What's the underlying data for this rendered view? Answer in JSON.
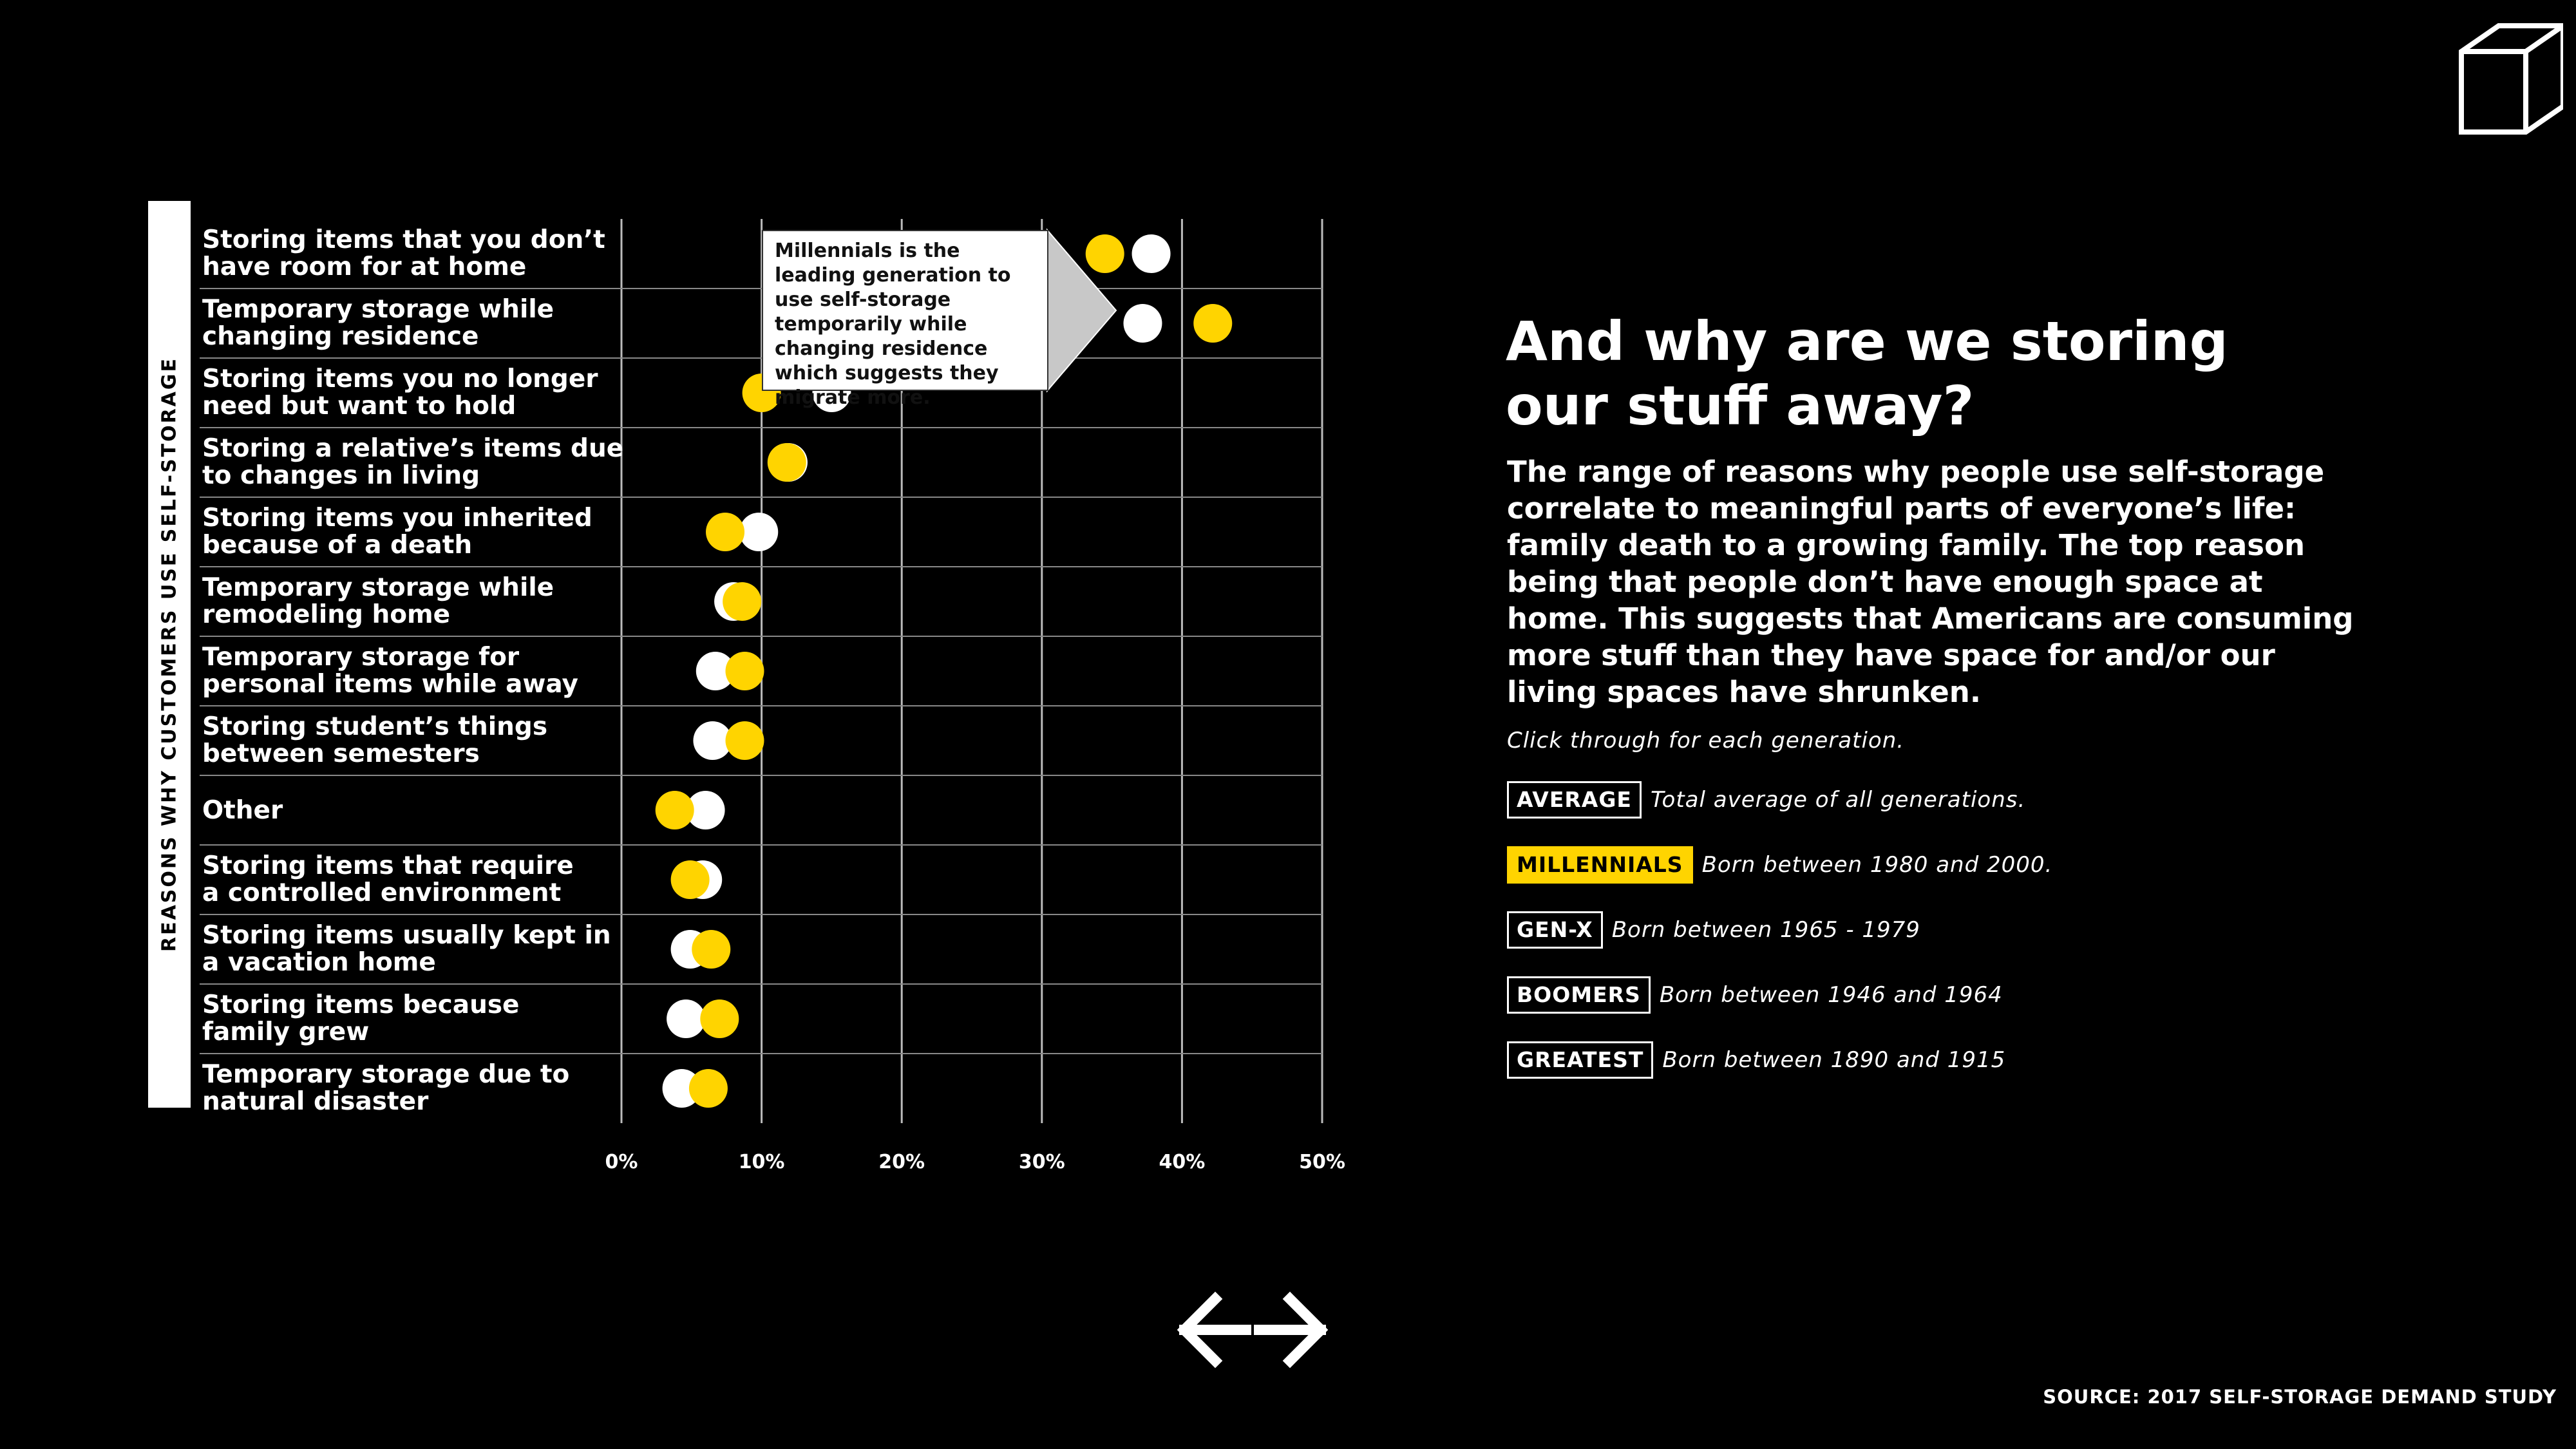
{
  "heading": "And why are we storing our stuff away?",
  "description": "The range of reasons why people use self-storage correlate to meaningful parts of everyone’s life: family death to a growing family. The top reason being that people don’t have enough space at home. This suggests that Americans are consuming more stuff than they have space for and/or our living spaces have shrunken.",
  "instruction": "Click through for each generation.",
  "legend": [
    {
      "label": "AVERAGE",
      "description": "Total average of all generations.",
      "active": false
    },
    {
      "label": "MILLENNIALS",
      "description": "Born between 1980 and 2000.",
      "active": true
    },
    {
      "label": "GEN-X",
      "description": "Born between 1965 - 1979",
      "active": false
    },
    {
      "label": "BOOMERS",
      "description": "Born between 1946 and 1964",
      "active": false
    },
    {
      "label": "GREATEST",
      "description": "Born between 1890 and 1915",
      "active": false
    }
  ],
  "callout": "Millennials is the leading generation to use self-storage temporarily while changing residence which suggests they migrate more.",
  "source": "SOURCE: 2017 SELF-STORAGE DEMAND STUDY",
  "colors": {
    "background": "#000000",
    "average": "#ffffff",
    "millennials": "#ffd400"
  },
  "icons": {
    "logo": "cube-icon",
    "prev": "arrow-left-icon",
    "next": "arrow-right-icon"
  },
  "chart_data": {
    "type": "scatter",
    "ylabel": "REASONS WHY CUSTOMERS USE SELF-STORAGE",
    "xlabel": "",
    "xlim": [
      0,
      50
    ],
    "x_ticks": [
      "0%",
      "10%",
      "20%",
      "30%",
      "40%",
      "50%"
    ],
    "grid": true,
    "categories": [
      [
        "Storing items that you don’t",
        "have room for at home"
      ],
      [
        "Temporary storage while",
        "changing residence"
      ],
      [
        "Storing items you no longer",
        "need but want to hold"
      ],
      [
        "Storing a relative’s items due",
        "to changes in living"
      ],
      [
        "Storing items you inherited",
        "because of a death"
      ],
      [
        "Temporary storage while",
        "remodeling home"
      ],
      [
        "Temporary storage for",
        "personal items while away"
      ],
      [
        "Storing student’s things",
        "between semesters"
      ],
      [
        "Other"
      ],
      [
        "Storing items that require",
        "a controlled environment"
      ],
      [
        "Storing items usually kept in",
        "a vacation home"
      ],
      [
        "Storing items because",
        "family grew"
      ],
      [
        "Temporary storage due to",
        "natural disaster"
      ]
    ],
    "series": [
      {
        "name": "AVERAGE",
        "values": [
          37.8,
          37.2,
          15,
          11.9,
          9.8,
          8,
          6.7,
          6.5,
          6,
          5.8,
          4.9,
          4.6,
          4.3
        ]
      },
      {
        "name": "MILLENNIALS",
        "values": [
          34.5,
          42.2,
          10,
          11.8,
          7.4,
          8.6,
          8.8,
          8.8,
          3.8,
          4.9,
          6.4,
          7,
          6.2
        ]
      }
    ]
  }
}
